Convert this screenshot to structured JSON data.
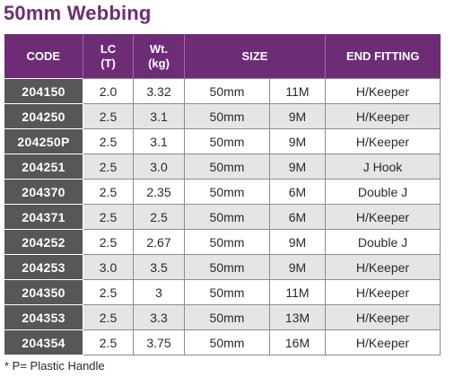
{
  "title": "50mm Webbing",
  "headers": {
    "code": "CODE",
    "lc": "LC",
    "lc_unit": "(T)",
    "wt": "Wt.",
    "wt_unit": "(kg)",
    "size": "SIZE",
    "end_fitting": "END FITTING"
  },
  "rows": [
    {
      "code": "204150",
      "lc": "2.0",
      "wt": "3.32",
      "width": "50mm",
      "length": "11M",
      "fitting": "H/Keeper"
    },
    {
      "code": "204250",
      "lc": "2.5",
      "wt": "3.1",
      "width": "50mm",
      "length": "9M",
      "fitting": "H/Keeper"
    },
    {
      "code": "204250P",
      "lc": "2.5",
      "wt": "3.1",
      "width": "50mm",
      "length": "9M",
      "fitting": "H/Keeper"
    },
    {
      "code": "204251",
      "lc": "2.5",
      "wt": "3.0",
      "width": "50mm",
      "length": "9M",
      "fitting": "J Hook"
    },
    {
      "code": "204370",
      "lc": "2.5",
      "wt": "2.35",
      "width": "50mm",
      "length": "6M",
      "fitting": "Double J"
    },
    {
      "code": "204371",
      "lc": "2.5",
      "wt": "2.5",
      "width": "50mm",
      "length": "6M",
      "fitting": "H/Keeper"
    },
    {
      "code": "204252",
      "lc": "2.5",
      "wt": "2.67",
      "width": "50mm",
      "length": "9M",
      "fitting": "Double J"
    },
    {
      "code": "204253",
      "lc": "3.0",
      "wt": "3.5",
      "width": "50mm",
      "length": "9M",
      "fitting": "H/Keeper"
    },
    {
      "code": "204350",
      "lc": "2.5",
      "wt": "3",
      "width": "50mm",
      "length": "11M",
      "fitting": "H/Keeper"
    },
    {
      "code": "204353",
      "lc": "2.5",
      "wt": "3.3",
      "width": "50mm",
      "length": "13M",
      "fitting": "H/Keeper"
    },
    {
      "code": "204354",
      "lc": "2.5",
      "wt": "3.75",
      "width": "50mm",
      "length": "16M",
      "fitting": "H/Keeper"
    }
  ],
  "footnote": "* P= Plastic Handle",
  "colors": {
    "brand_purple": "#6e2c77",
    "code_cell_bg": "#575757",
    "row_stripe": "#e5e5e5"
  }
}
